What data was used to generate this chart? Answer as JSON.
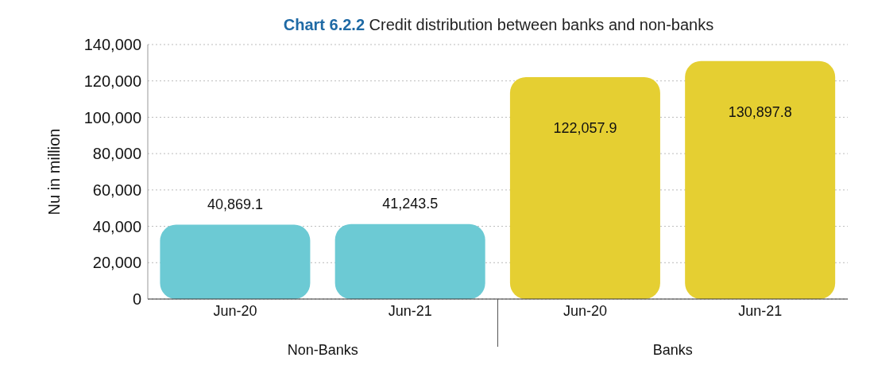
{
  "chart_data": {
    "type": "bar",
    "title": "Chart 6.2.2 Credit distribution between banks and non-banks",
    "ylabel": "Nu in million",
    "categories": [
      "Jun-20",
      "Jun-21",
      "Jun-20",
      "Jun-21"
    ],
    "values": [
      40869.1,
      41243.5,
      122057.9,
      130897.8
    ],
    "value_labels": [
      "40,869.1",
      "41,243.5",
      "122,057.9",
      "130,897.8"
    ],
    "colors": [
      "#6ccad4",
      "#6ccad4",
      "#e5cf32",
      "#e5cf32"
    ],
    "ylim": [
      0,
      140000
    ],
    "yticks": [
      0,
      {
        "value": 20000,
        "label": "20,000"
      },
      {
        "value": 40000,
        "label": "40,000"
      },
      {
        "value": 60000,
        "label": "60,000"
      },
      {
        "value": 80000,
        "label": "80,000"
      },
      {
        "value": 100000,
        "label": "100,000"
      },
      {
        "value": 120000,
        "label": "120,000"
      },
      {
        "value": 140000,
        "label": "140,000"
      }
    ],
    "grid": "y",
    "annotations": [
      "Non-Banks",
      "Banks"
    ]
  }
}
